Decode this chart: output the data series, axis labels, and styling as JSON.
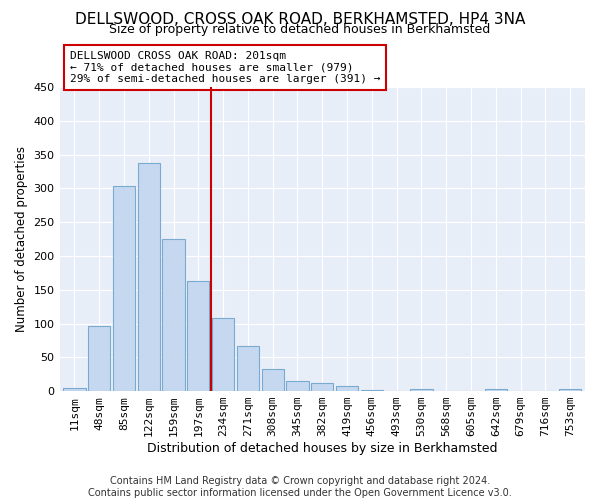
{
  "title": "DELLSWOOD, CROSS OAK ROAD, BERKHAMSTED, HP4 3NA",
  "subtitle": "Size of property relative to detached houses in Berkhamsted",
  "xlabel": "Distribution of detached houses by size in Berkhamsted",
  "ylabel": "Number of detached properties",
  "bar_values": [
    5,
    97,
    303,
    338,
    225,
    163,
    108,
    67,
    33,
    15,
    12,
    7,
    1,
    0,
    3,
    0,
    0,
    3,
    0,
    0,
    3
  ],
  "bar_labels": [
    "11sqm",
    "48sqm",
    "85sqm",
    "122sqm",
    "159sqm",
    "197sqm",
    "234sqm",
    "271sqm",
    "308sqm",
    "345sqm",
    "382sqm",
    "419sqm",
    "456sqm",
    "493sqm",
    "530sqm",
    "568sqm",
    "605sqm",
    "642sqm",
    "679sqm",
    "716sqm",
    "753sqm"
  ],
  "bar_color": "#c5d8f0",
  "bar_edge_color": "#7aaad0",
  "vline_color": "#cc0000",
  "annotation_text": "DELLSWOOD CROSS OAK ROAD: 201sqm\n← 71% of detached houses are smaller (979)\n29% of semi-detached houses are larger (391) →",
  "annotation_box_color": "white",
  "annotation_box_edge_color": "#cc0000",
  "ylim": [
    0,
    450
  ],
  "yticks": [
    0,
    50,
    100,
    150,
    200,
    250,
    300,
    350,
    400,
    450
  ],
  "footnote": "Contains HM Land Registry data © Crown copyright and database right 2024.\nContains public sector information licensed under the Open Government Licence v3.0.",
  "background_color": "#e8eef8",
  "grid_color": "#ffffff",
  "title_fontsize": 11,
  "subtitle_fontsize": 9,
  "xlabel_fontsize": 9,
  "ylabel_fontsize": 8.5,
  "tick_fontsize": 8,
  "footnote_fontsize": 7,
  "vline_bar_index": 5
}
